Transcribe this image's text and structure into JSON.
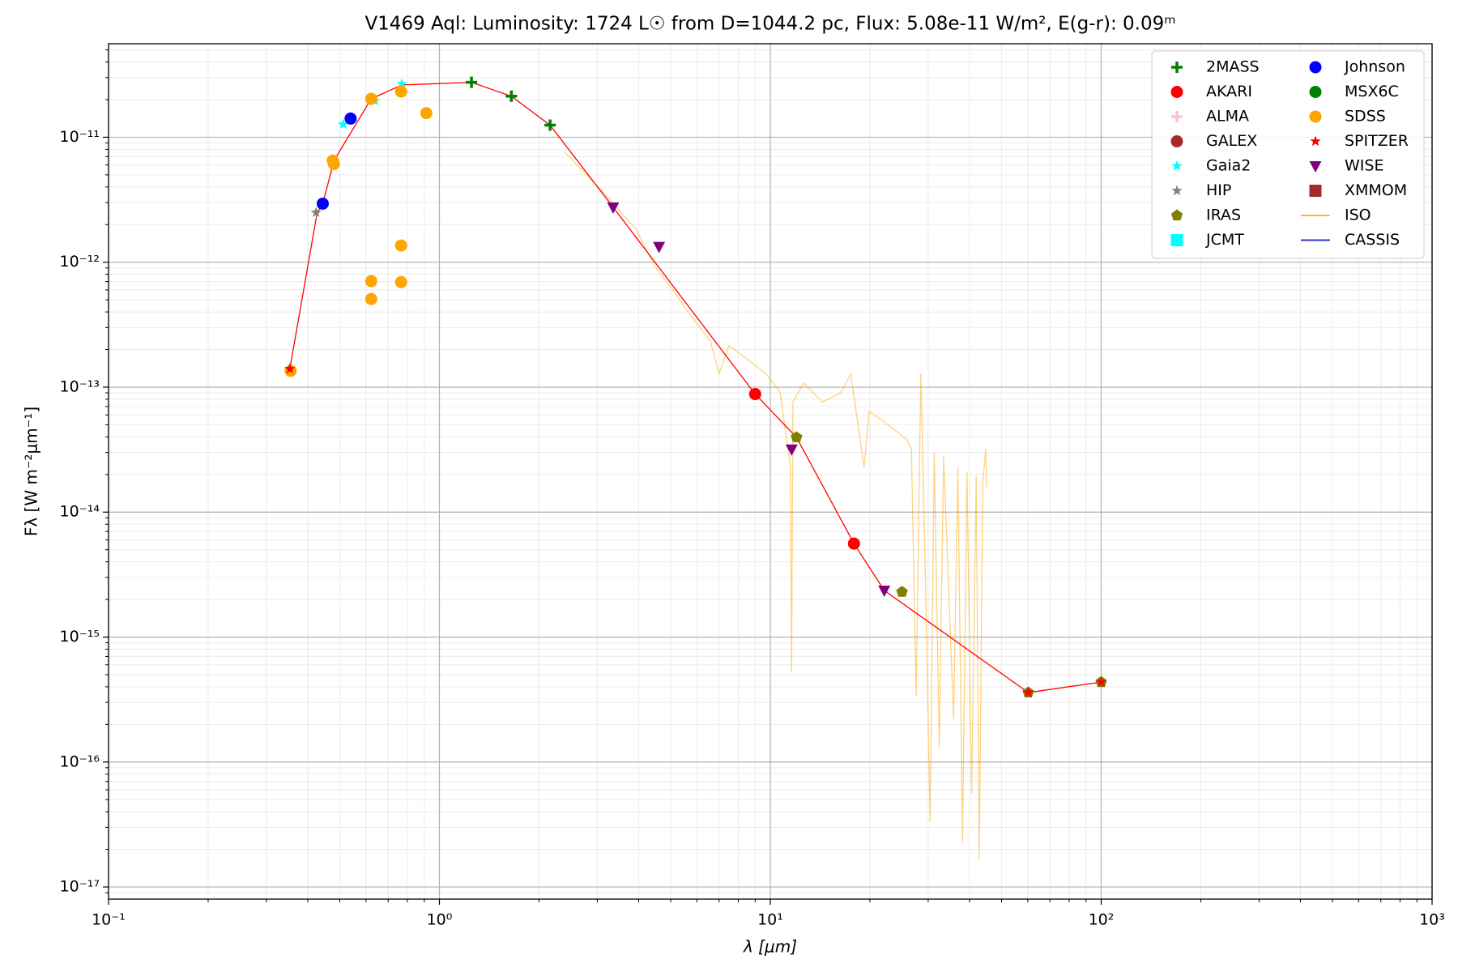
{
  "chart_data": {
    "type": "scatter",
    "title": "V1469 Aql:  Luminosity: 1724 L☉ from D=1044.2 pc, Flux: 5.08e-11 W/m², E(g-r): 0.09ᵐ",
    "xlabel": "λ [μm]",
    "ylabel": "Fλ [W m⁻²μm⁻¹]",
    "xscale": "log",
    "yscale": "log",
    "xlim": [
      0.1,
      1000
    ],
    "ylim": [
      8e-18,
      5.6e-11
    ],
    "xticks": [
      {
        "value": 0.1,
        "label": "10⁻¹"
      },
      {
        "value": 1,
        "label": "10⁰"
      },
      {
        "value": 10,
        "label": "10¹"
      },
      {
        "value": 100,
        "label": "10²"
      },
      {
        "value": 1000,
        "label": "10³"
      }
    ],
    "yticks": [
      {
        "value": 1e-17,
        "label": "10⁻¹⁷"
      },
      {
        "value": 1e-16,
        "label": "10⁻¹⁶"
      },
      {
        "value": 1e-15,
        "label": "10⁻¹⁵"
      },
      {
        "value": 1e-14,
        "label": "10⁻¹⁴"
      },
      {
        "value": 1e-13,
        "label": "10⁻¹³"
      },
      {
        "value": 1e-12,
        "label": "10⁻¹²"
      },
      {
        "value": 1e-11,
        "label": "10⁻¹¹"
      }
    ],
    "xminorticks": [
      0.2,
      0.3,
      0.4,
      0.5,
      0.6,
      0.7,
      0.8,
      0.9,
      2,
      3,
      4,
      5,
      6,
      7,
      8,
      9,
      20,
      30,
      40,
      50,
      60,
      70,
      80,
      90,
      200,
      300,
      400,
      500,
      600,
      700,
      800,
      900
    ],
    "yminorticks": [
      9e-18,
      2e-17,
      3e-17,
      4e-17,
      5e-17,
      6e-17,
      7e-17,
      8e-17,
      9e-17,
      2e-16,
      3e-16,
      4e-16,
      5e-16,
      6e-16,
      7e-16,
      8e-16,
      9e-16,
      2e-15,
      3e-15,
      4e-15,
      5e-15,
      6e-15,
      7e-15,
      8e-15,
      9e-15,
      2e-14,
      3e-14,
      4e-14,
      5e-14,
      6e-14,
      7e-14,
      8e-14,
      9e-14,
      2e-13,
      3e-13,
      4e-13,
      5e-13,
      6e-13,
      7e-13,
      8e-13,
      9e-13,
      2e-12,
      3e-12,
      4e-12,
      5e-12,
      6e-12,
      7e-12,
      8e-12,
      9e-12,
      2e-11,
      3e-11,
      4e-11,
      5e-11
    ],
    "grid": "both",
    "legend": "upper right",
    "fit_line": {
      "color": "#ff0000",
      "x": [
        0.353,
        0.427,
        0.444,
        0.48,
        0.622,
        0.77,
        1.25,
        1.65,
        2.16,
        3.35,
        9.0,
        12.0,
        17.9,
        22.1,
        60.2,
        100
      ],
      "values": [
        1.4e-13,
        2.48e-12,
        2.94e-12,
        6.5e-12,
        2.03e-11,
        2.62e-11,
        2.75e-11,
        2.13e-11,
        1.25e-11,
        2.75e-12,
        8.8e-14,
        3.97e-14,
        5.6e-15,
        2.36e-15,
        3.6e-16,
        4.36e-16
      ]
    },
    "series": [
      {
        "name": "2MASS",
        "marker": "plus",
        "color": "#008000",
        "x": [
          1.25,
          1.65,
          2.16
        ],
        "values": [
          2.75e-11,
          2.13e-11,
          1.25e-11
        ]
      },
      {
        "name": "AKARI",
        "marker": "circle",
        "color": "#ff0000",
        "x": [
          9.0,
          17.9
        ],
        "values": [
          8.8e-14,
          5.6e-15
        ]
      },
      {
        "name": "ALMA",
        "marker": "plus",
        "color": "#ffc0cb",
        "x": [],
        "values": []
      },
      {
        "name": "GALEX",
        "marker": "circle",
        "color": "#a52a2a",
        "x": [],
        "values": []
      },
      {
        "name": "Gaia2",
        "marker": "star",
        "color": "#00ffff",
        "x": [
          0.512,
          0.638,
          0.77
        ],
        "values": [
          1.27e-11,
          1.96e-11,
          2.67e-11
        ]
      },
      {
        "name": "HIP",
        "marker": "star",
        "color": "#808080",
        "x": [
          0.424
        ],
        "values": [
          2.5e-12
        ]
      },
      {
        "name": "IRAS",
        "marker": "pentagon",
        "color": "#808000",
        "x": [
          12.0,
          25.0,
          60.2,
          100
        ],
        "values": [
          3.97e-14,
          2.3e-15,
          3.6e-16,
          4.36e-16
        ]
      },
      {
        "name": "JCMT",
        "marker": "square",
        "color": "#00ffff",
        "x": [],
        "values": []
      },
      {
        "name": "Johnson",
        "marker": "circle",
        "color": "#0000ff",
        "x": [
          0.444,
          0.539
        ],
        "values": [
          2.94e-12,
          1.41e-11
        ]
      },
      {
        "name": "MSX6C",
        "marker": "circle",
        "color": "#008000",
        "x": [],
        "values": []
      },
      {
        "name": "SDSS",
        "marker": "circle",
        "color": "#ffa500",
        "x": [
          0.355,
          0.476,
          0.48,
          0.622,
          0.766,
          0.913,
          0.766,
          0.622,
          0.622,
          0.766
        ],
        "values": [
          1.35e-13,
          6.5e-12,
          6.1e-12,
          2.03e-11,
          2.32e-11,
          1.56e-11,
          1.36e-12,
          7.05e-13,
          5.08e-13,
          6.93e-13
        ]
      },
      {
        "name": "SPITZER",
        "marker": "star",
        "color": "#ff0000",
        "x": [
          0.353,
          60.2,
          100
        ],
        "values": [
          1.4e-13,
          3.6e-16,
          4.36e-16
        ]
      },
      {
        "name": "WISE",
        "marker": "tri_down",
        "color": "#800080",
        "x": [
          3.35,
          4.61,
          11.6,
          22.1
        ],
        "values": [
          2.75e-12,
          1.33e-12,
          3.18e-14,
          2.36e-15
        ]
      },
      {
        "name": "XMMOM",
        "marker": "square",
        "color": "#a52a2a",
        "x": [],
        "values": []
      },
      {
        "name": "ISO",
        "marker": "line",
        "color": "#ffa500",
        "x": [
          2.38,
          3.02,
          3.92,
          4.47,
          5.08,
          5.79,
          6.59,
          7.0,
          7.5,
          8.55,
          9.7,
          10.7,
          11.5,
          11.6,
          11.7,
          12.6,
          14.4,
          16.4,
          17.5,
          19.2,
          19.9,
          22.7,
          25.8,
          26.7,
          27.6,
          28.5,
          29.4,
          30.4,
          31.3,
          32.4,
          33.4,
          35.8,
          36.9,
          38.1,
          39.3,
          40.6,
          41.9,
          42.8,
          43.9,
          44.8,
          45.1
        ],
        "values": [
          7.7e-12,
          4e-12,
          1.85e-12,
          9.3e-13,
          6e-13,
          3.6e-13,
          2.34e-13,
          1.28e-13,
          2.15e-13,
          1.66e-13,
          1.28e-13,
          9.1e-14,
          2.3e-14,
          5.2e-16,
          7.6e-14,
          1.08e-13,
          7.6e-14,
          9.1e-14,
          1.28e-13,
          2.3e-14,
          6.4e-14,
          5e-14,
          3.84e-14,
          3.2e-14,
          3.4e-16,
          1.28e-13,
          3.4e-15,
          3.3e-17,
          3e-14,
          1.3e-16,
          2.8e-14,
          2.2e-16,
          2.3e-14,
          2.3e-17,
          2.1e-14,
          5.5e-17,
          1.93e-14,
          1.66e-17,
          1.77e-14,
          3.2e-14,
          1.6e-14
        ]
      },
      {
        "name": "CASSIS",
        "marker": "line",
        "color": "#0000cd",
        "x": [],
        "values": []
      }
    ]
  }
}
